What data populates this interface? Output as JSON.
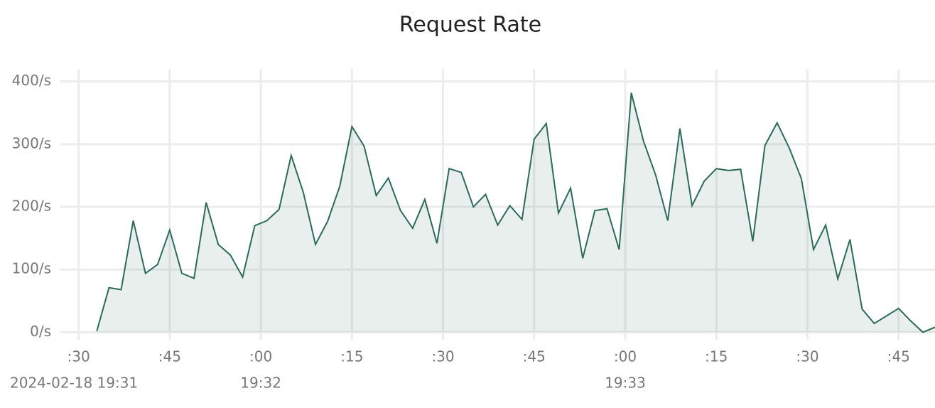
{
  "chart_data": {
    "type": "area",
    "title": "Request Rate",
    "x": [
      "2024-02-18T19:31:33",
      "2024-02-18T19:31:35",
      "2024-02-18T19:31:37",
      "2024-02-18T19:31:39",
      "2024-02-18T19:31:41",
      "2024-02-18T19:31:43",
      "2024-02-18T19:31:45",
      "2024-02-18T19:31:47",
      "2024-02-18T19:31:49",
      "2024-02-18T19:31:51",
      "2024-02-18T19:31:53",
      "2024-02-18T19:31:55",
      "2024-02-18T19:31:57",
      "2024-02-18T19:31:59",
      "2024-02-18T19:32:01",
      "2024-02-18T19:32:03",
      "2024-02-18T19:32:05",
      "2024-02-18T19:32:07",
      "2024-02-18T19:32:09",
      "2024-02-18T19:32:11",
      "2024-02-18T19:32:13",
      "2024-02-18T19:32:15",
      "2024-02-18T19:32:17",
      "2024-02-18T19:32:19",
      "2024-02-18T19:32:21",
      "2024-02-18T19:32:23",
      "2024-02-18T19:32:25",
      "2024-02-18T19:32:27",
      "2024-02-18T19:32:29",
      "2024-02-18T19:32:31",
      "2024-02-18T19:32:33",
      "2024-02-18T19:32:35",
      "2024-02-18T19:32:37",
      "2024-02-18T19:32:39",
      "2024-02-18T19:32:41",
      "2024-02-18T19:32:43",
      "2024-02-18T19:32:45",
      "2024-02-18T19:32:47",
      "2024-02-18T19:32:49",
      "2024-02-18T19:32:51",
      "2024-02-18T19:32:53",
      "2024-02-18T19:32:55",
      "2024-02-18T19:32:57",
      "2024-02-18T19:32:59",
      "2024-02-18T19:33:01",
      "2024-02-18T19:33:03",
      "2024-02-18T19:33:05",
      "2024-02-18T19:33:07",
      "2024-02-18T19:33:09",
      "2024-02-18T19:33:11",
      "2024-02-18T19:33:13",
      "2024-02-18T19:33:15",
      "2024-02-18T19:33:17",
      "2024-02-18T19:33:19",
      "2024-02-18T19:33:21",
      "2024-02-18T19:33:23",
      "2024-02-18T19:33:25",
      "2024-02-18T19:33:27",
      "2024-02-18T19:33:29",
      "2024-02-18T19:33:31",
      "2024-02-18T19:33:33",
      "2024-02-18T19:33:35",
      "2024-02-18T19:33:37",
      "2024-02-18T19:33:39",
      "2024-02-18T19:33:41",
      "2024-02-18T19:33:43",
      "2024-02-18T19:33:45",
      "2024-02-18T19:33:47",
      "2024-02-18T19:33:49",
      "2024-02-18T19:33:51"
    ],
    "series": [
      {
        "color": "#2d6a5a",
        "values": [
          2,
          71,
          68,
          178,
          94,
          108,
          163,
          94,
          86,
          207,
          140,
          123,
          88,
          170,
          178,
          196,
          282,
          223,
          140,
          177,
          233,
          328,
          297,
          218,
          246,
          194,
          166,
          212,
          142,
          261,
          255,
          200,
          220,
          171,
          202,
          180,
          308,
          333,
          190,
          230,
          118,
          194,
          197,
          132,
          382,
          305,
          251,
          178,
          325,
          202,
          241,
          261,
          258,
          260,
          145,
          298,
          334,
          294,
          245,
          132,
          171,
          85,
          148,
          37,
          14,
          26,
          38,
          18,
          0,
          8
        ]
      }
    ],
    "xlim": [
      "2024-02-18T19:31:27",
      "2024-02-18T19:33:51"
    ],
    "xticks": [
      {
        "value": "2024-02-18T19:31:30",
        "label": ":30"
      },
      {
        "value": "2024-02-18T19:31:45",
        "label": ":45"
      },
      {
        "value": "2024-02-18T19:32:00",
        "label": ":00"
      },
      {
        "value": "2024-02-18T19:32:15",
        "label": ":15"
      },
      {
        "value": "2024-02-18T19:32:30",
        "label": ":30"
      },
      {
        "value": "2024-02-18T19:32:45",
        "label": ":45"
      },
      {
        "value": "2024-02-18T19:33:00",
        "label": ":00"
      },
      {
        "value": "2024-02-18T19:33:15",
        "label": ":15"
      },
      {
        "value": "2024-02-18T19:33:30",
        "label": ":30"
      },
      {
        "value": "2024-02-18T19:33:45",
        "label": ":45"
      }
    ],
    "xtick_sublabels": [
      {
        "value": "2024-02-18T19:31:30",
        "label": "2024-02-18 19:31"
      },
      {
        "value": "2024-02-18T19:32:00",
        "label": "19:32"
      },
      {
        "value": "2024-02-18T19:33:00",
        "label": "19:33"
      }
    ],
    "ylim": [
      -12,
      420
    ],
    "yticks": [
      {
        "value": 0,
        "label": "0/s"
      },
      {
        "value": 100,
        "label": "100/s"
      },
      {
        "value": 200,
        "label": "200/s"
      },
      {
        "value": 300,
        "label": "300/s"
      },
      {
        "value": 400,
        "label": "400/s"
      }
    ],
    "grid": true
  }
}
